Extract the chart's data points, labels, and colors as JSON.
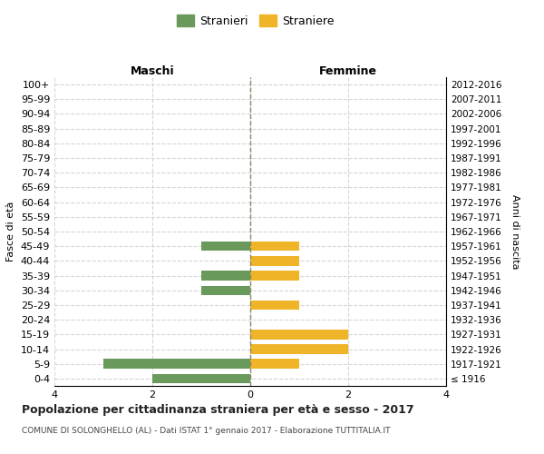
{
  "age_groups": [
    "100+",
    "95-99",
    "90-94",
    "85-89",
    "80-84",
    "75-79",
    "70-74",
    "65-69",
    "60-64",
    "55-59",
    "50-54",
    "45-49",
    "40-44",
    "35-39",
    "30-34",
    "25-29",
    "20-24",
    "15-19",
    "10-14",
    "5-9",
    "0-4"
  ],
  "birth_years": [
    "≤ 1916",
    "1917-1921",
    "1922-1926",
    "1927-1931",
    "1932-1936",
    "1937-1941",
    "1942-1946",
    "1947-1951",
    "1952-1956",
    "1957-1961",
    "1962-1966",
    "1967-1971",
    "1972-1976",
    "1977-1981",
    "1982-1986",
    "1987-1991",
    "1992-1996",
    "1997-2001",
    "2002-2006",
    "2007-2011",
    "2012-2016"
  ],
  "males": [
    0,
    0,
    0,
    0,
    0,
    0,
    0,
    0,
    0,
    0,
    0,
    -1,
    0,
    -1,
    -1,
    0,
    0,
    0,
    0,
    -3,
    -2
  ],
  "females": [
    0,
    0,
    0,
    0,
    0,
    0,
    0,
    0,
    0,
    0,
    0,
    1,
    1,
    1,
    0,
    1,
    0,
    2,
    2,
    1,
    0
  ],
  "male_color": "#6a9a5b",
  "female_color": "#f0b429",
  "title": "Popolazione per cittadinanza straniera per età e sesso - 2017",
  "subtitle": "COMUNE DI SOLONGHELLO (AL) - Dati ISTAT 1° gennaio 2017 - Elaborazione TUTTITALIA.IT",
  "ylabel_left": "Fasce di età",
  "ylabel_right": "Anni di nascita",
  "label_maschi": "Maschi",
  "label_femmine": "Femmine",
  "legend_male": "Stranieri",
  "legend_female": "Straniere",
  "xlim": [
    -4,
    4
  ],
  "xticks": [
    -4,
    -2,
    0,
    2,
    4
  ],
  "xticklabels": [
    "4",
    "2",
    "0",
    "2",
    "4"
  ],
  "background_color": "#ffffff",
  "grid_color": "#cccccc"
}
